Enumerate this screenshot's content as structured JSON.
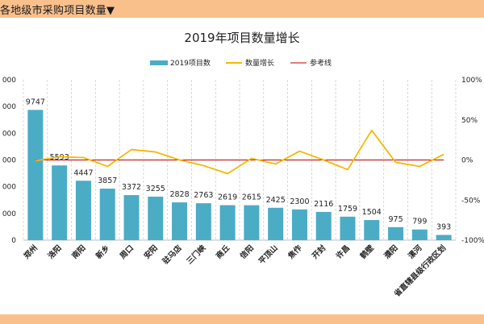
{
  "header": {
    "title": "各地级市采购项目数量▼"
  },
  "chart_data": {
    "type": "bar",
    "title": "2019年项目数量增长",
    "legend": [
      "2019项目数",
      "数量增长",
      "参考线"
    ],
    "legend_position": "top",
    "categories": [
      "郑州",
      "洛阳",
      "南阳",
      "新乡",
      "周口",
      "安阳",
      "驻马店",
      "三门峡",
      "商丘",
      "信阳",
      "平顶山",
      "焦作",
      "开封",
      "许昌",
      "鹤壁",
      "濮阳",
      "漯河",
      "省直辖县级行政区划"
    ],
    "series": [
      {
        "name": "2019项目数",
        "type": "bar",
        "color": "#4bacc6",
        "values": [
          9747,
          5593,
          4447,
          3857,
          3372,
          3255,
          2828,
          2763,
          2619,
          2615,
          2425,
          2300,
          2116,
          1759,
          1504,
          975,
          799,
          393
        ]
      },
      {
        "name": "数量增长",
        "type": "line",
        "color": "#f5b800",
        "axis": "right",
        "unit": "%",
        "values": [
          -1,
          4,
          3,
          -8,
          13,
          10,
          0,
          -7,
          -17,
          2,
          -5,
          11,
          0,
          -12,
          37,
          -3,
          -8,
          7
        ]
      },
      {
        "name": "参考线",
        "type": "line",
        "color": "#c00000",
        "axis": "right",
        "unit": "%",
        "values": [
          0,
          0,
          0,
          0,
          0,
          0,
          0,
          0,
          0,
          0,
          0,
          0,
          0,
          0,
          0,
          0,
          0,
          0
        ]
      }
    ],
    "y_left_ticks": [
      "000",
      "000",
      "000",
      "000",
      "000",
      "000",
      "0"
    ],
    "y_left_range": [
      0,
      12000
    ],
    "y_right_ticks": [
      "100%",
      "50%",
      "0%",
      "-50%",
      "-100%"
    ],
    "y_right_range": [
      -100,
      100
    ],
    "grid": "vertical-dashed"
  }
}
